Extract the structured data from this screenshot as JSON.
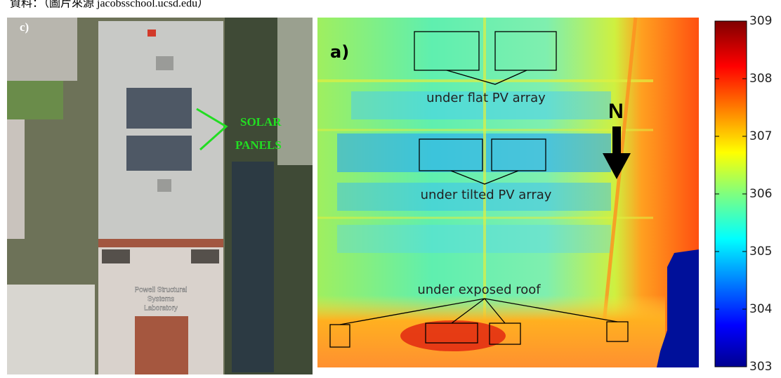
{
  "caption": "資料：（圖片來源 jacobsschool.ucsd.edu）",
  "photo": {
    "label": "c)",
    "annotation": [
      "SOLAR",
      "PANELS"
    ],
    "building_sign": [
      "Powell Structural",
      "Systems",
      "Laboratory"
    ]
  },
  "thermal": {
    "label": "a)",
    "regions": [
      "under flat PV array",
      "under tilted PV array",
      "under exposed roof"
    ],
    "north": "N"
  },
  "colorbar": {
    "lim": [
      303,
      309
    ],
    "ticks": [
      303,
      304,
      305,
      306,
      307,
      308,
      309
    ]
  }
}
